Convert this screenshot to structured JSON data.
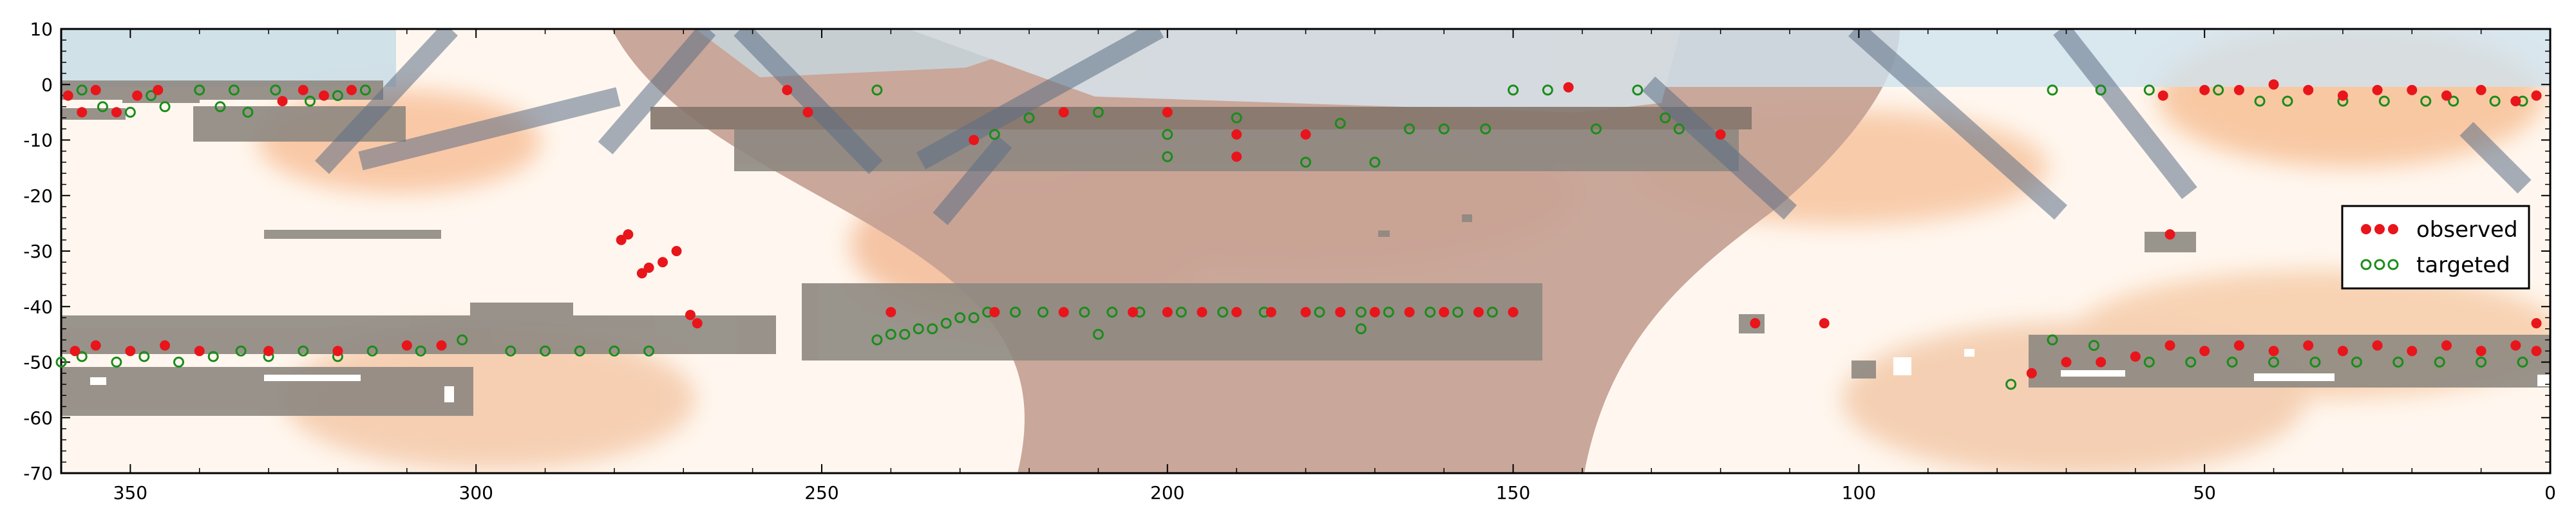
{
  "chart_data": {
    "type": "scatter",
    "title": "",
    "xlabel": "",
    "ylabel": "",
    "xlim": [
      360,
      0
    ],
    "ylim": [
      -70,
      10
    ],
    "x_ticks": [
      350,
      300,
      250,
      200,
      150,
      100,
      50,
      0
    ],
    "y_ticks": [
      10,
      0,
      -10,
      -20,
      -30,
      -40,
      -50,
      -60,
      -70
    ],
    "x_tick_labels": [
      "350",
      "300",
      "250",
      "200",
      "150",
      "100",
      "50",
      "0"
    ],
    "y_tick_labels": [
      "10",
      "0",
      "-10",
      "-20",
      "-30",
      "-40",
      "-50",
      "-60",
      "-70"
    ],
    "grid": false,
    "legend": {
      "position": "right",
      "entries": [
        {
          "label": "observed",
          "marker": "filled-circle",
          "color": "#e8151b"
        },
        {
          "label": "targeted",
          "marker": "open-circle",
          "color": "#1a8c1a"
        }
      ]
    },
    "series": [
      {
        "name": "observed",
        "color": "#e8151b",
        "marker": "filled-circle",
        "points": [
          [
            359,
            -2
          ],
          [
            357,
            -5
          ],
          [
            355,
            -1
          ],
          [
            352,
            -5
          ],
          [
            349,
            -2
          ],
          [
            346,
            -1
          ],
          [
            328,
            -3
          ],
          [
            325,
            -1
          ],
          [
            322,
            -2
          ],
          [
            318,
            -1
          ],
          [
            252,
            -5
          ],
          [
            228,
            -10
          ],
          [
            215,
            -5
          ],
          [
            200,
            -5
          ],
          [
            190,
            -9
          ],
          [
            190,
            -13
          ],
          [
            180,
            -9
          ],
          [
            120,
            -9
          ],
          [
            142,
            -0.5
          ],
          [
            255,
            -1
          ],
          [
            56,
            -2
          ],
          [
            50,
            -1
          ],
          [
            45,
            -1
          ],
          [
            40,
            0
          ],
          [
            35,
            -1
          ],
          [
            30,
            -2
          ],
          [
            25,
            -1
          ],
          [
            20,
            -1
          ],
          [
            15,
            -2
          ],
          [
            10,
            -1
          ],
          [
            5,
            -3
          ],
          [
            2,
            -2
          ],
          [
            358,
            -48
          ],
          [
            355,
            -47
          ],
          [
            350,
            -48
          ],
          [
            345,
            -47
          ],
          [
            340,
            -48
          ],
          [
            330,
            -48
          ],
          [
            320,
            -48
          ],
          [
            310,
            -47
          ],
          [
            305,
            -47
          ],
          [
            268,
            -43
          ],
          [
            240,
            -41
          ],
          [
            225,
            -41
          ],
          [
            215,
            -41
          ],
          [
            205,
            -41
          ],
          [
            200,
            -41
          ],
          [
            195,
            -41
          ],
          [
            190,
            -41
          ],
          [
            185,
            -41
          ],
          [
            180,
            -41
          ],
          [
            175,
            -41
          ],
          [
            170,
            -41
          ],
          [
            165,
            -41
          ],
          [
            160,
            -41
          ],
          [
            155,
            -41
          ],
          [
            150,
            -41
          ],
          [
            115,
            -43
          ],
          [
            105,
            -43
          ],
          [
            55,
            -27
          ],
          [
            70,
            -50
          ],
          [
            65,
            -50
          ],
          [
            60,
            -49
          ],
          [
            55,
            -47
          ],
          [
            50,
            -48
          ],
          [
            45,
            -47
          ],
          [
            40,
            -48
          ],
          [
            35,
            -47
          ],
          [
            30,
            -48
          ],
          [
            25,
            -47
          ],
          [
            20,
            -48
          ],
          [
            15,
            -47
          ],
          [
            10,
            -48
          ],
          [
            5,
            -47
          ],
          [
            2,
            -43
          ],
          [
            2,
            -48
          ],
          [
            75,
            -52
          ],
          [
            279,
            -28
          ],
          [
            278,
            -27
          ],
          [
            276,
            -34
          ],
          [
            275,
            -33
          ],
          [
            273,
            -32
          ],
          [
            271,
            -30
          ],
          [
            269,
            -41.5
          ]
        ]
      },
      {
        "name": "targeted",
        "color": "#1a8c1a",
        "points": [
          [
            357,
            -1
          ],
          [
            354,
            -4
          ],
          [
            350,
            -5
          ],
          [
            347,
            -2
          ],
          [
            345,
            -4
          ],
          [
            340,
            -1
          ],
          [
            337,
            -4
          ],
          [
            335,
            -1
          ],
          [
            333,
            -5
          ],
          [
            329,
            -1
          ],
          [
            324,
            -3
          ],
          [
            320,
            -2
          ],
          [
            316,
            -1
          ],
          [
            242,
            -1
          ],
          [
            225,
            -9
          ],
          [
            220,
            -6
          ],
          [
            210,
            -5
          ],
          [
            200,
            -9
          ],
          [
            200,
            -13
          ],
          [
            190,
            -6
          ],
          [
            180,
            -14
          ],
          [
            175,
            -7
          ],
          [
            170,
            -14
          ],
          [
            165,
            -8
          ],
          [
            160,
            -8
          ],
          [
            154,
            -8
          ],
          [
            150,
            -1
          ],
          [
            145,
            -1
          ],
          [
            138,
            -8
          ],
          [
            132,
            -1
          ],
          [
            128,
            -6
          ],
          [
            126,
            -8
          ],
          [
            72,
            -1
          ],
          [
            65,
            -1
          ],
          [
            58,
            -1
          ],
          [
            48,
            -1
          ],
          [
            42,
            -3
          ],
          [
            38,
            -3
          ],
          [
            30,
            -3
          ],
          [
            24,
            -3
          ],
          [
            18,
            -3
          ],
          [
            14,
            -3
          ],
          [
            8,
            -3
          ],
          [
            4,
            -3
          ],
          [
            360,
            -50
          ],
          [
            357,
            -49
          ],
          [
            352,
            -50
          ],
          [
            348,
            -49
          ],
          [
            343,
            -50
          ],
          [
            338,
            -49
          ],
          [
            334,
            -48
          ],
          [
            330,
            -49
          ],
          [
            325,
            -48
          ],
          [
            320,
            -49
          ],
          [
            315,
            -48
          ],
          [
            308,
            -48
          ],
          [
            302,
            -46
          ],
          [
            295,
            -48
          ],
          [
            290,
            -48
          ],
          [
            285,
            -48
          ],
          [
            280,
            -48
          ],
          [
            275,
            -48
          ],
          [
            242,
            -46
          ],
          [
            240,
            -45
          ],
          [
            238,
            -45
          ],
          [
            236,
            -44
          ],
          [
            234,
            -44
          ],
          [
            232,
            -43
          ],
          [
            230,
            -42
          ],
          [
            228,
            -42
          ],
          [
            226,
            -41
          ],
          [
            222,
            -41
          ],
          [
            218,
            -41
          ],
          [
            212,
            -41
          ],
          [
            208,
            -41
          ],
          [
            204,
            -41
          ],
          [
            198,
            -41
          ],
          [
            192,
            -41
          ],
          [
            186,
            -41
          ],
          [
            178,
            -41
          ],
          [
            172,
            -41
          ],
          [
            168,
            -41
          ],
          [
            162,
            -41
          ],
          [
            158,
            -41
          ],
          [
            153,
            -41
          ],
          [
            210,
            -45
          ],
          [
            172,
            -44
          ],
          [
            78,
            -54
          ],
          [
            72,
            -46
          ],
          [
            66,
            -47
          ],
          [
            58,
            -50
          ],
          [
            52,
            -50
          ],
          [
            46,
            -50
          ],
          [
            40,
            -50
          ],
          [
            34,
            -50
          ],
          [
            28,
            -50
          ],
          [
            22,
            -50
          ],
          [
            16,
            -50
          ],
          [
            10,
            -50
          ],
          [
            4,
            -50
          ]
        ]
      }
    ]
  }
}
